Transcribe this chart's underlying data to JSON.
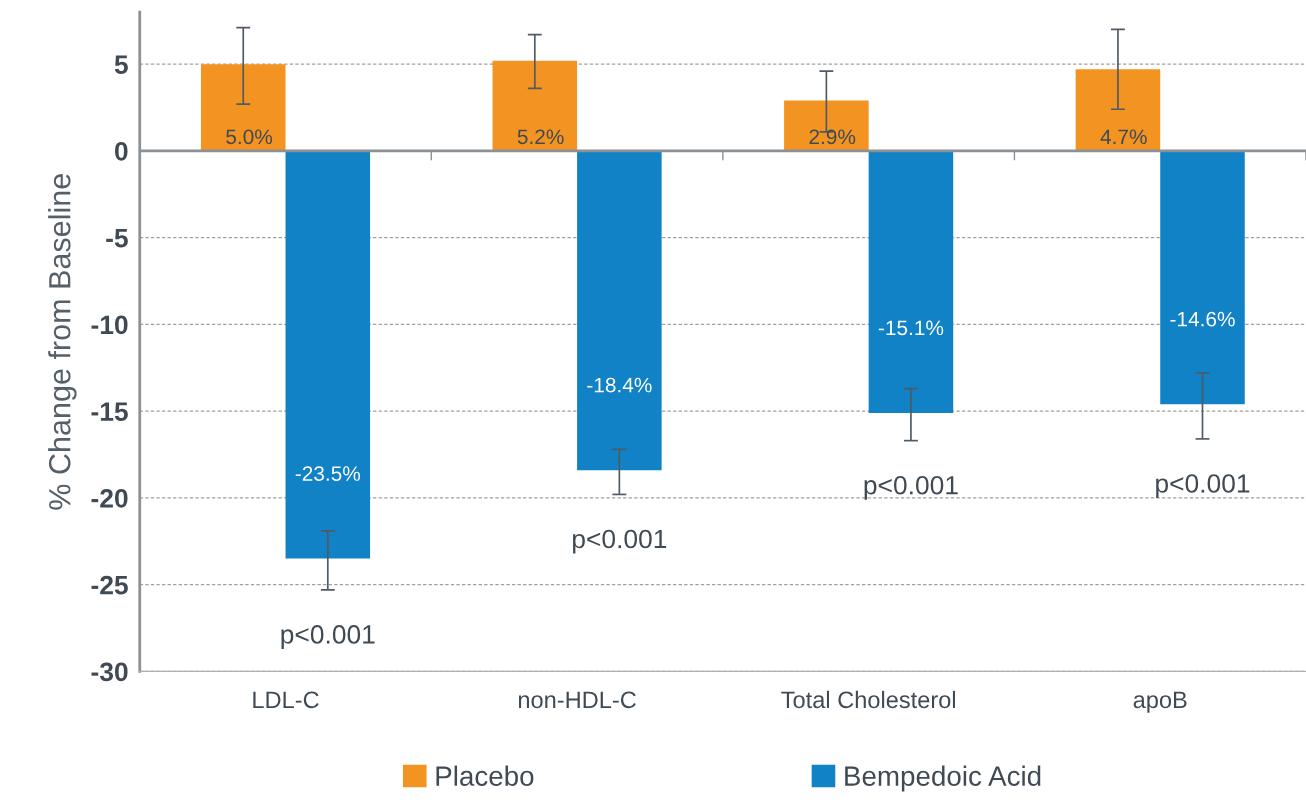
{
  "chart_data": {
    "type": "bar",
    "ylabel": "% Change from Baseline",
    "categories": [
      "LDL-C",
      "non-HDL-C",
      "Total Cholesterol",
      "apoB"
    ],
    "series": [
      {
        "name": "Placebo",
        "color": "#f39322",
        "values": [
          5.0,
          5.2,
          2.9,
          4.7
        ],
        "value_labels": [
          "5.0%",
          "5.2%",
          "2.9%",
          "4.7%"
        ],
        "errors": [
          [
            2.7,
            7.1
          ],
          [
            3.6,
            6.7
          ],
          [
            1.1,
            4.6
          ],
          [
            2.4,
            7.0
          ]
        ]
      },
      {
        "name": "Bempedoic Acid",
        "color": "#1282c6",
        "values": [
          -23.5,
          -18.4,
          -15.1,
          -14.6
        ],
        "value_labels": [
          "-23.5%",
          "-18.4%",
          "-15.1%",
          "-14.6%"
        ],
        "errors": [
          [
            -25.3,
            -21.9
          ],
          [
            -19.8,
            -17.2
          ],
          [
            -16.7,
            -13.7
          ],
          [
            -16.6,
            -12.8
          ]
        ]
      }
    ],
    "ylim": [
      -30,
      8
    ],
    "yticks": [
      -30,
      -25,
      -20,
      -15,
      -10,
      -5,
      0,
      5
    ],
    "grid": "y",
    "legend": "bottom",
    "annotations": [
      "p<0.001",
      "p<0.001",
      "p<0.001",
      "p<0.001"
    ]
  }
}
